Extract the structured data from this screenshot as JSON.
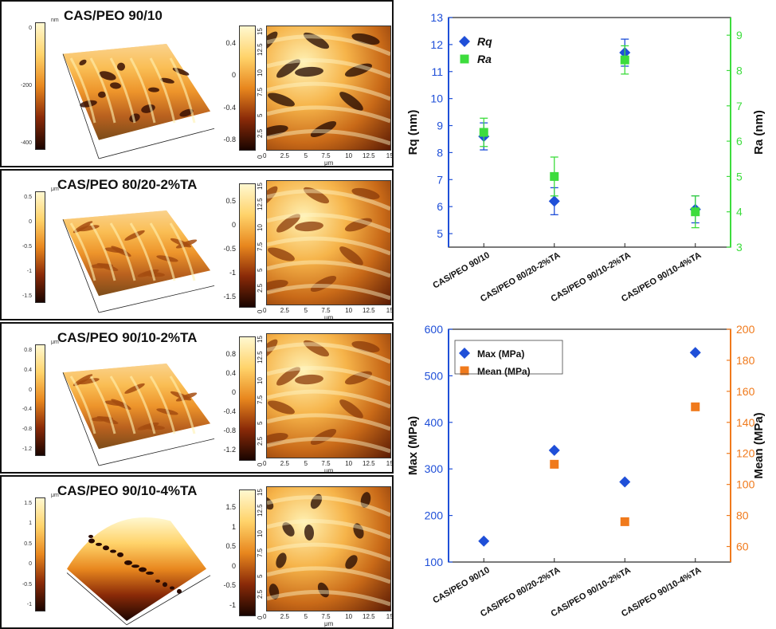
{
  "afm_panels": [
    {
      "title": "CAS/PEO 90/10",
      "colorbar3d": {
        "unit": "nm",
        "ticks": [
          "0",
          "-200",
          "-400"
        ]
      },
      "colorbar2d": {
        "ticks": [
          "0.4",
          "0",
          "-0.4",
          "-0.8"
        ]
      },
      "map_ticks_x": [
        "0",
        "2.5",
        "5",
        "7.5",
        "10",
        "12.5",
        "15"
      ],
      "map_ticks_y": [
        "15",
        "12.5",
        "10",
        "7.5",
        "5",
        "2.5",
        "0"
      ],
      "axis_unit": "μm"
    },
    {
      "title": "CAS/PEO 80/20-2%TA",
      "colorbar3d": {
        "unit": "μm",
        "ticks": [
          "0.5",
          "0",
          "-0.5",
          "-1",
          "-1.5"
        ]
      },
      "colorbar2d": {
        "ticks": [
          "0.5",
          "0",
          "-0.5",
          "-1",
          "-1.5"
        ]
      },
      "map_ticks_x": [
        "0",
        "2.5",
        "5",
        "7.5",
        "10",
        "12.5",
        "15"
      ],
      "map_ticks_y": [
        "15",
        "12.5",
        "10",
        "7.5",
        "5",
        "2.5",
        "0"
      ],
      "axis_unit": "μm"
    },
    {
      "title": "CAS/PEO 90/10-2%TA",
      "colorbar3d": {
        "unit": "μm",
        "ticks": [
          "0.8",
          "0.4",
          "0",
          "-0.4",
          "-0.8",
          "-1.2"
        ]
      },
      "colorbar2d": {
        "ticks": [
          "0.8",
          "0.4",
          "0",
          "-0.4",
          "-0.8",
          "-1.2"
        ]
      },
      "map_ticks_x": [
        "0",
        "2.5",
        "5",
        "7.5",
        "10",
        "12.5",
        "15"
      ],
      "map_ticks_y": [
        "15",
        "12.5",
        "10",
        "7.5",
        "5",
        "2.5",
        "0"
      ],
      "axis_unit": "μm"
    },
    {
      "title": "CAS/PEO 90/10-4%TA",
      "colorbar3d": {
        "unit": "μm",
        "ticks": [
          "1.5",
          "1",
          "0.5",
          "0",
          "-0.5",
          "-1"
        ]
      },
      "colorbar2d": {
        "ticks": [
          "1.5",
          "1",
          "0.5",
          "0",
          "-0.5",
          "-1"
        ]
      },
      "map_ticks_x": [
        "0",
        "2.5",
        "5",
        "7.5",
        "10",
        "12.5",
        "15"
      ],
      "map_ticks_y": [
        "15",
        "12.5",
        "10",
        "7.5",
        "5",
        "2.5",
        "0"
      ],
      "axis_unit": "μm"
    }
  ],
  "chart_data": [
    {
      "type": "scatter",
      "categories": [
        "CAS/PEO 90/10",
        "CAS/PEO 80/20-2%TA",
        "CAS/PEO 90/10-2%TA",
        "CAS/PEO 90/10-4%TA"
      ],
      "ylabel": "Rq (nm)",
      "y2label": "Ra (nm)",
      "ylim": [
        4.5,
        13
      ],
      "y2lim": [
        3,
        9.5
      ],
      "yticks": [
        5,
        6,
        7,
        8,
        9,
        10,
        11,
        12,
        13
      ],
      "y2ticks": [
        3,
        4,
        5,
        6,
        7,
        8,
        9
      ],
      "legend_position": "top-left",
      "series": [
        {
          "name": "Rq",
          "axis": "left",
          "marker": "diamond",
          "color": "#1f4fd8",
          "values": [
            8.6,
            6.2,
            11.7,
            5.9
          ],
          "errors": [
            0.5,
            0.5,
            0.5,
            0.5
          ]
        },
        {
          "name": "Ra",
          "axis": "right",
          "marker": "square",
          "color": "#3ddc3d",
          "values": [
            6.25,
            5.0,
            8.3,
            4.0
          ],
          "errors": [
            0.4,
            0.55,
            0.4,
            0.45
          ]
        }
      ]
    },
    {
      "type": "scatter",
      "categories": [
        "CAS/PEO 90/10",
        "CAS/PEO 80/20-2%TA",
        "CAS/PEO 90/10-2%TA",
        "CAS/PEO 90/10-4%TA"
      ],
      "ylabel": "Max (MPa)",
      "y2label": "Mean (MPa)",
      "ylim": [
        100,
        600
      ],
      "y2lim": [
        50,
        200
      ],
      "yticks": [
        100,
        200,
        300,
        400,
        500,
        600
      ],
      "y2ticks": [
        60,
        80,
        100,
        120,
        140,
        160,
        180,
        200
      ],
      "legend_position": "top-left",
      "series": [
        {
          "name": "Max (MPa)",
          "axis": "left",
          "marker": "diamond",
          "color": "#1f4fd8",
          "values": [
            145,
            340,
            272,
            550
          ]
        },
        {
          "name": "Mean (MPa)",
          "axis": "right",
          "marker": "square",
          "color": "#f07a1c",
          "values": [
            null,
            113,
            76,
            150
          ]
        }
      ]
    }
  ],
  "colors": {
    "left_axis": "#1f4fd8",
    "right_axis_top": "#3ddc3d",
    "right_axis_bottom": "#f07a1c"
  }
}
